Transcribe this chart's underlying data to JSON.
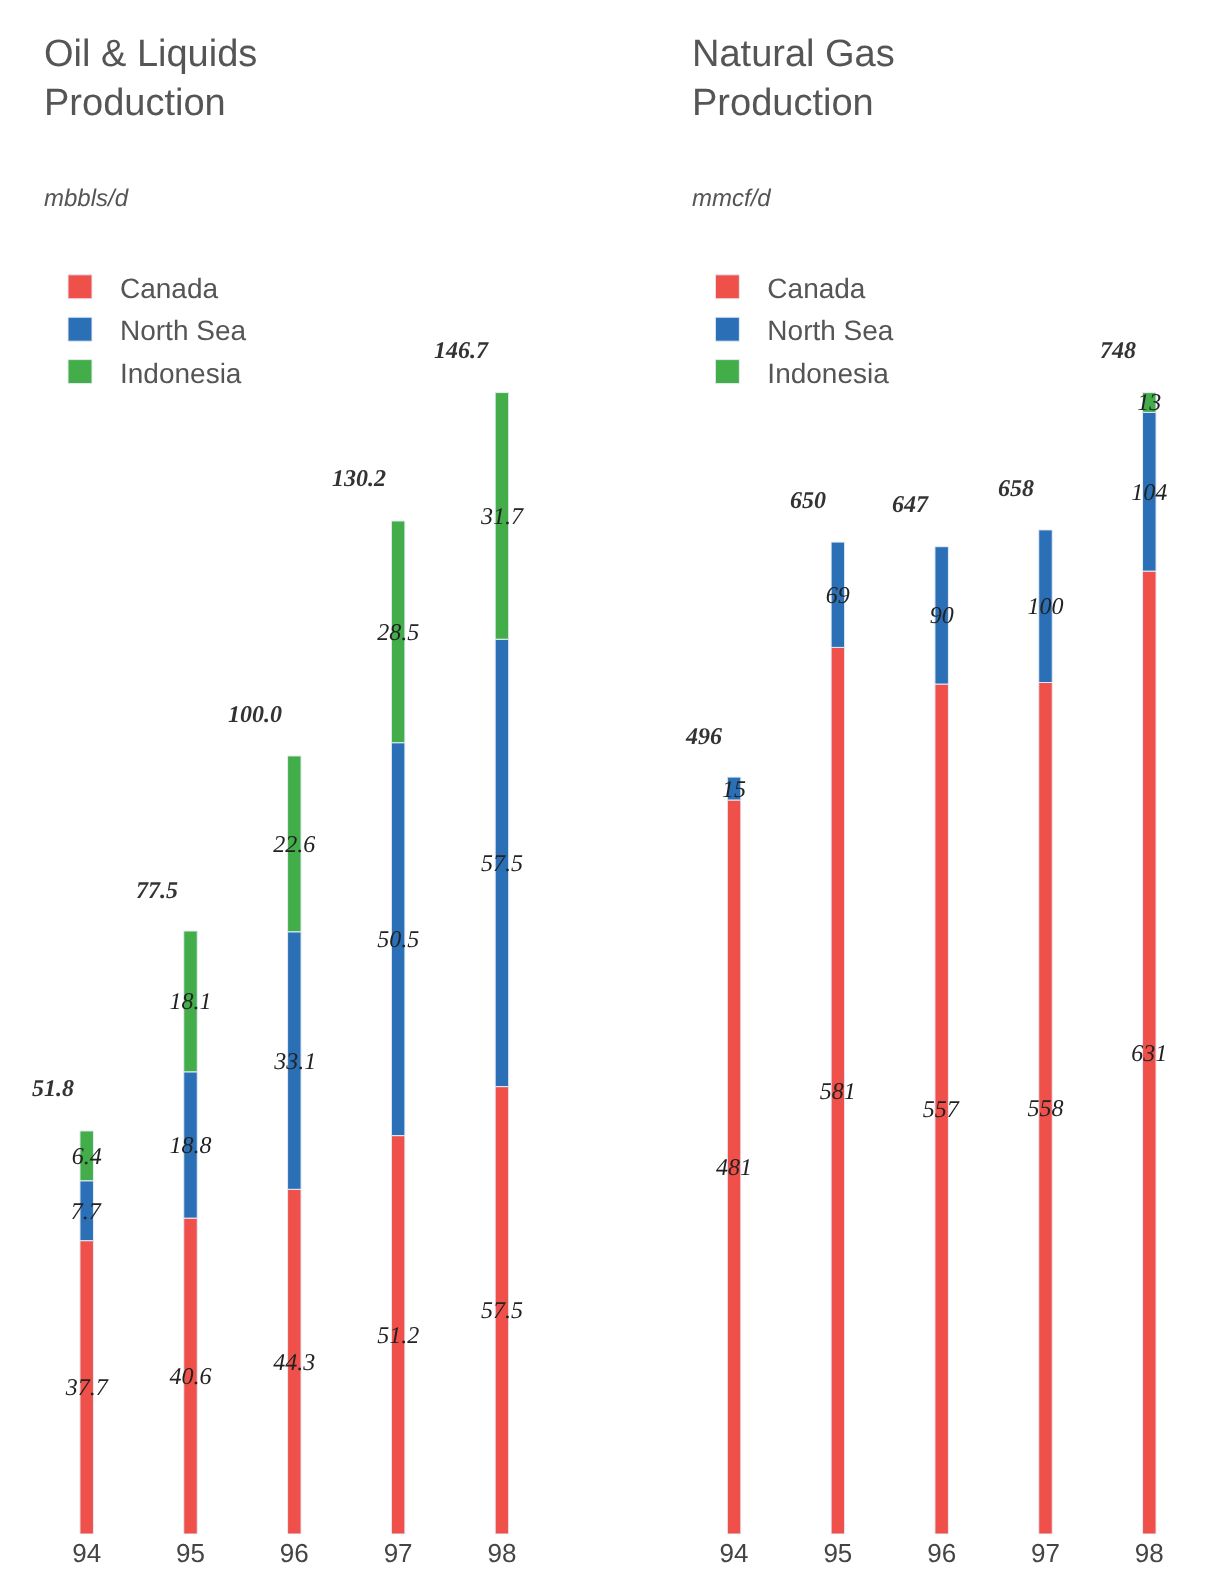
{
  "chart_data": [
    {
      "type": "bar",
      "title": "Oil & Liquids\nProduction",
      "subtitle": "mbbls/d",
      "categories": [
        "94",
        "95",
        "96",
        "97",
        "98"
      ],
      "stacked": true,
      "data_labels": true,
      "legend": "top left",
      "totals": [
        "51.8",
        "77.5",
        "100.0",
        "130.2",
        "146.7"
      ],
      "series": [
        {
          "name": "Canada",
          "color": "#f0504a",
          "values": [
            37.7,
            40.6,
            44.3,
            51.2,
            57.5
          ]
        },
        {
          "name": "North Sea",
          "color": "#2b70b6",
          "values": [
            7.7,
            18.8,
            33.1,
            50.5,
            57.5
          ]
        },
        {
          "name": "Indonesia",
          "color": "#43ad4a",
          "values": [
            6.4,
            18.1,
            22.6,
            28.5,
            31.7
          ]
        }
      ]
    },
    {
      "type": "bar",
      "title": "Natural Gas\nProduction",
      "subtitle": "mmcf/d",
      "categories": [
        "94",
        "95",
        "96",
        "97",
        "98"
      ],
      "stacked": true,
      "data_labels": true,
      "legend": "top left",
      "totals": [
        "496",
        "650",
        "647",
        "658",
        "748"
      ],
      "series": [
        {
          "name": "Canada",
          "color": "#f0504a",
          "values": [
            481,
            581,
            557,
            558,
            631
          ]
        },
        {
          "name": "North Sea",
          "color": "#2b70b6",
          "values": [
            15,
            69,
            90,
            100,
            104
          ]
        },
        {
          "name": "Indonesia",
          "color": "#43ad4a",
          "values": [
            null,
            null,
            null,
            null,
            13
          ]
        }
      ]
    }
  ]
}
